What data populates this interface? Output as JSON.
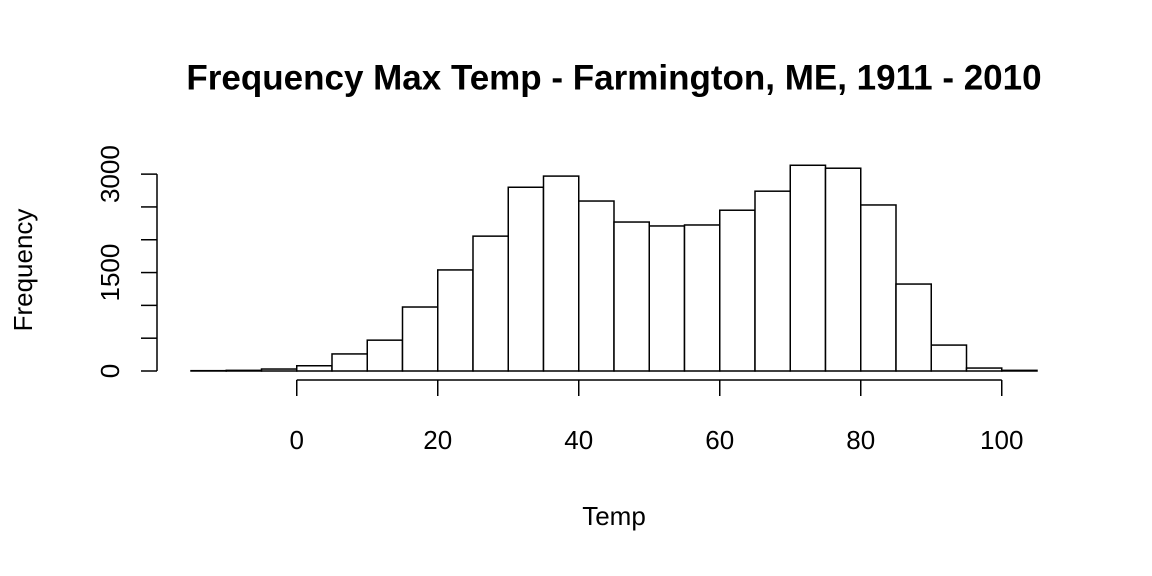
{
  "chart_data": {
    "type": "histogram",
    "title": "Frequency Max Temp - Farmington, ME, 1911 - 2010",
    "x_label": "Temp",
    "y_label": "Frequency",
    "bins": [
      -15,
      -10,
      -5,
      0,
      5,
      10,
      15,
      20,
      25,
      30,
      35,
      40,
      45,
      50,
      55,
      60,
      65,
      70,
      75,
      80,
      85,
      90,
      95,
      100,
      105
    ],
    "values": [
      5,
      10,
      30,
      80,
      260,
      470,
      975,
      1540,
      2055,
      2800,
      2970,
      2590,
      2270,
      2210,
      2225,
      2450,
      2740,
      3135,
      3090,
      2530,
      1325,
      395,
      45,
      10
    ],
    "color": "#ffffff",
    "xlim": [
      -15,
      105
    ],
    "xticks": [
      0,
      20,
      40,
      60,
      80,
      100
    ],
    "ylim": [
      0,
      3200
    ],
    "yticks": [
      0,
      {
        "value": 500,
        "label": null
      },
      {
        "value": 1000,
        "label": null
      },
      1500,
      {
        "value": 2000,
        "label": null
      },
      {
        "value": 2500,
        "label": null
      },
      3000
    ]
  }
}
